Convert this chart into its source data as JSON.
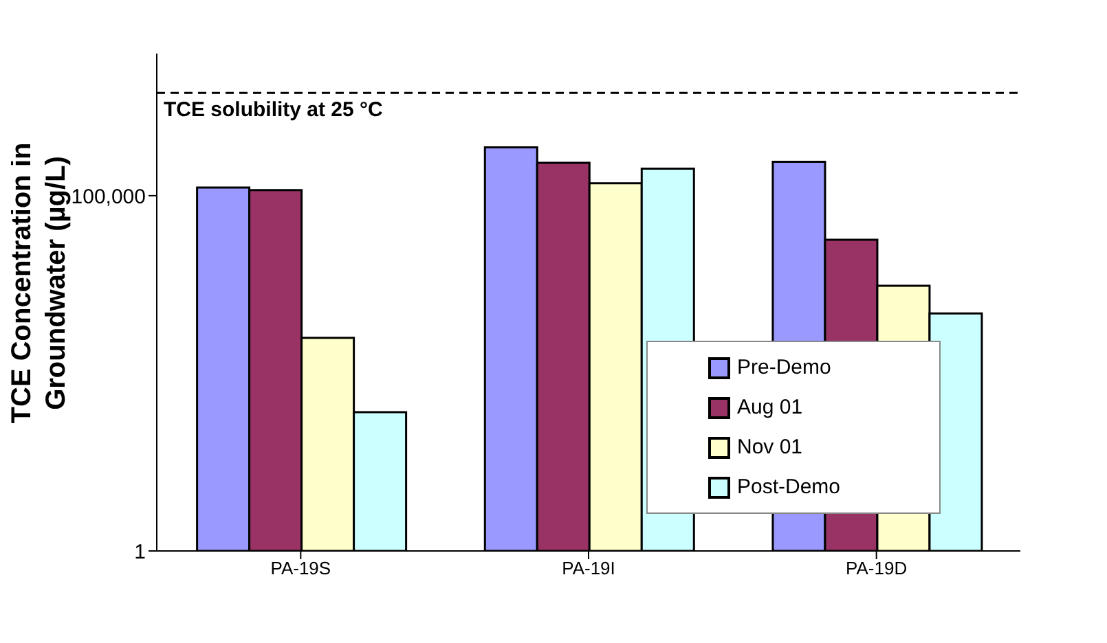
{
  "chart_data": {
    "type": "bar",
    "ylabel": "TCE Concentration in Groundwater (µg/L)",
    "categories": [
      "PA-19S",
      "PA-19I",
      "PA-19D"
    ],
    "series": [
      {
        "name": "Pre-Demo",
        "color": "#9999ff",
        "values": [
          130000,
          480000,
          300000
        ]
      },
      {
        "name": "Aug 01",
        "color": "#993366",
        "values": [
          120000,
          290000,
          24000
        ]
      },
      {
        "name": "Nov 01",
        "color": "#ffffcc",
        "values": [
          1000,
          150000,
          5400
        ]
      },
      {
        "name": "Post-Demo",
        "color": "#ccffff",
        "values": [
          90,
          240000,
          2200
        ]
      }
    ],
    "log": "y",
    "ylim": [
      1,
      10000000
    ],
    "yticks": [
      1,
      {
        "value": 100000,
        "label": "100,000"
      }
    ],
    "grid": false,
    "legend": "bottom right",
    "ref_lines": [
      {
        "axis": "y",
        "value": 2800000,
        "label": "TCE solubility at 25 °C",
        "line_style": "dashed",
        "color": "#000000"
      }
    ]
  }
}
